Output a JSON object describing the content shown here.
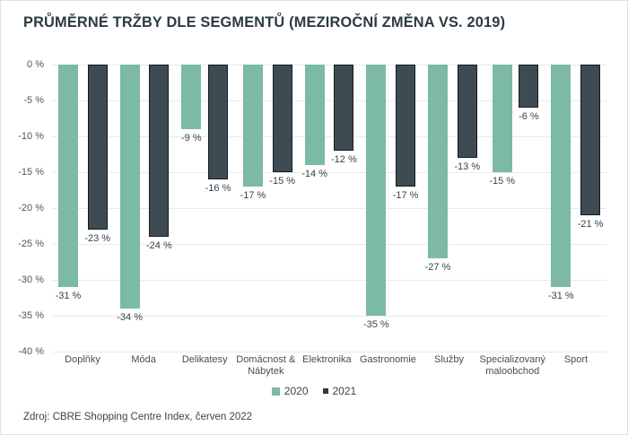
{
  "title": "PRŮMĚRNÉ TRŽBY DLE SEGMENTŮ (MEZIROČNÍ ZMĚNA VS. 2019)",
  "source": "Zdroj: CBRE Shopping Centre Index, červen 2022",
  "colors": {
    "series_2020": "#7cb9a6",
    "series_2021": "#3e4b52",
    "series_2021_border": "#131c20",
    "gridline": "#e8ebeb",
    "title_text": "#2b3a42",
    "axis_text": "#4d575e"
  },
  "chart_data": {
    "type": "bar",
    "title": "PRŮMĚRNÉ TRŽBY DLE SEGMENTŮ (MEZIROČNÍ ZMĚNA VS. 2019)",
    "categories": [
      "Doplňky",
      "Móda",
      "Delikatesy",
      "Domácnost & Nábytek",
      "Elektronika",
      "Gastronomie",
      "Služby",
      "Specializovaný maloobchod",
      "Sport"
    ],
    "series": [
      {
        "name": "2020",
        "color": "#7cb9a6",
        "values": [
          -31,
          -34,
          -9,
          -17,
          -14,
          -35,
          -27,
          -15,
          -31
        ]
      },
      {
        "name": "2021",
        "color": "#3e4b52",
        "values": [
          -23,
          -24,
          -16,
          -15,
          -12,
          -17,
          -13,
          -6,
          -21
        ]
      }
    ],
    "value_label_format": "{v} %",
    "xlabel": "",
    "ylabel": "",
    "ylim": [
      -40,
      0
    ],
    "yticks": [
      0,
      -5,
      -10,
      -15,
      -20,
      -25,
      -30,
      -35,
      -40
    ],
    "ytick_format": "{v} %",
    "grid": true,
    "legend_position": "bottom"
  }
}
